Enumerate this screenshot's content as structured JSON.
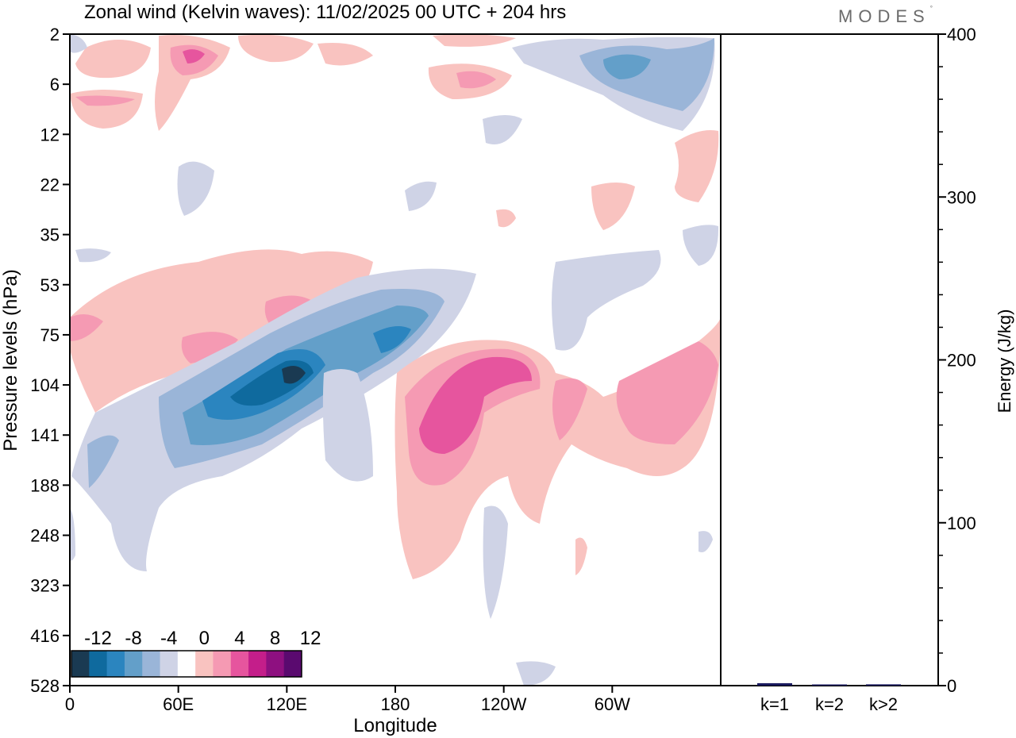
{
  "logo": {
    "text": "MODES",
    "mark": "°"
  },
  "chart_data": [
    {
      "type": "heatmap",
      "title": "Zonal wind (Kelvin waves):  11/02/2025  00 UTC  + 204 hrs",
      "xlabel": "Longitude",
      "ylabel": "Pressure levels (hPa)",
      "x_ticks": [
        "0",
        "60E",
        "120E",
        "180",
        "120W",
        "60W"
      ],
      "x_tick_degrees": [
        0,
        60,
        120,
        180,
        240,
        300
      ],
      "x_range": [
        0,
        360
      ],
      "y_ticks": [
        "2",
        "6",
        "12",
        "22",
        "35",
        "53",
        "75",
        "104",
        "141",
        "188",
        "248",
        "323",
        "416",
        "528"
      ],
      "y_scale": "model levels (non-uniform)",
      "colorbar": {
        "labels": [
          "-12",
          "-8",
          "-4",
          "0",
          "4",
          "8",
          "12"
        ],
        "colors": [
          "#1a3a52",
          "#0f6a9e",
          "#2b85bf",
          "#639fc9",
          "#9ab5d8",
          "#cfd3e6",
          "#ffffff",
          "#f9c3c0",
          "#f59ab3",
          "#e6559e",
          "#c41e8a",
          "#8e1080",
          "#5a0a6f"
        ]
      },
      "features": [
        {
          "label": "negative anomaly band (easterly)",
          "level_range_hPa": [
            188,
            53
          ],
          "lon_range": [
            "0",
            "140W"
          ]
        },
        {
          "label": "positive anomaly (westerly)",
          "level_range_hPa": [
            323,
            75
          ],
          "lon_range": [
            "180",
            "20W"
          ]
        }
      ]
    },
    {
      "type": "bar",
      "ylabel": "Energy (J/kg)",
      "categories": [
        "k=1",
        "k=2",
        "k>2"
      ],
      "values": [
        1.5,
        0.3,
        0.8
      ],
      "ylim": [
        0,
        400
      ],
      "y_ticks": [
        "0",
        "100",
        "200",
        "300",
        "400"
      ],
      "bar_color": "#1a1a5e"
    }
  ]
}
